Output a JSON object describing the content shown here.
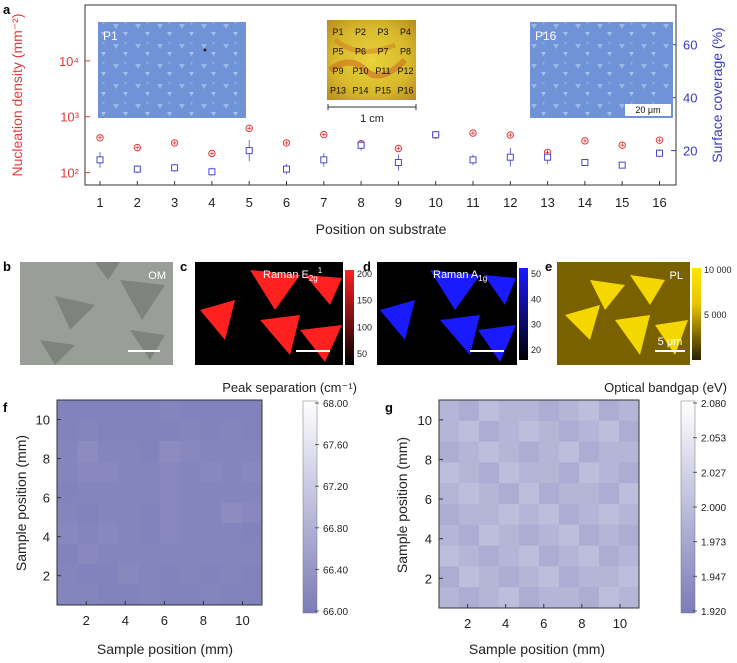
{
  "panel_a": {
    "letter": "a",
    "chart_data": {
      "type": "scatter",
      "xlabel": "Position on substrate",
      "ylabel_left": "Nucleation density (mm⁻²)",
      "ylabel_right": "Surface coverage (%)",
      "x_ticks": [
        "1",
        "2",
        "3",
        "4",
        "5",
        "6",
        "7",
        "8",
        "9",
        "10",
        "11",
        "12",
        "13",
        "14",
        "15",
        "16"
      ],
      "y_left_scale": "log",
      "y_left_ticks": [
        "10²",
        "10³",
        "10⁴"
      ],
      "y_left_range": [
        60,
        100000
      ],
      "y_right_ticks": [
        "20",
        "40",
        "60"
      ],
      "y_right_range": [
        7,
        75
      ],
      "series": [
        {
          "color": "#e03b3b",
          "marker": "circle-plus",
          "x": [
            1,
            2,
            3,
            4,
            5,
            6,
            7,
            8,
            9,
            10,
            11,
            12,
            13,
            14,
            15,
            16
          ],
          "values": [
            420,
            280,
            340,
            220,
            620,
            340,
            480,
            330,
            270,
            470,
            510,
            470,
            230,
            370,
            310,
            380
          ]
        },
        {
          "color": "#4a4ac8",
          "marker": "square-errorbar",
          "x": [
            1,
            2,
            3,
            4,
            5,
            6,
            7,
            8,
            9,
            10,
            11,
            12,
            13,
            14,
            15,
            16
          ],
          "values": [
            16.5,
            13,
            13.5,
            12,
            20,
            13,
            16.5,
            22,
            15.5,
            26,
            16.5,
            17.5,
            17.5,
            15.5,
            14.5,
            19
          ],
          "errors": [
            3,
            1.5,
            1.5,
            1.5,
            4,
            2,
            2.5,
            2,
            3,
            1.5,
            2,
            3.5,
            2.5,
            1,
            1,
            1.5
          ]
        }
      ]
    },
    "insets": {
      "left_label": "P1",
      "right_label": "P16",
      "scalebar_small": "20 μm",
      "grid_labels": [
        "P1",
        "P2",
        "P3",
        "P4",
        "P5",
        "P6",
        "P7",
        "P8",
        "P9",
        "P10",
        "P11",
        "P12",
        "P13",
        "P14",
        "P15",
        "P16"
      ],
      "scale_1cm": "1 cm"
    }
  },
  "panel_b": {
    "letter": "b",
    "label": "OM"
  },
  "panel_c": {
    "letter": "c",
    "label": "Raman E",
    "sub": "2g",
    "sup": "1",
    "colorbar_ticks": [
      "200",
      "150",
      "100",
      "50"
    ],
    "color": "#ff2020"
  },
  "panel_d": {
    "letter": "d",
    "label": "Raman A",
    "sub": "1g",
    "colorbar_ticks": [
      "50",
      "40",
      "30",
      "20"
    ],
    "color": "#1a1aff"
  },
  "panel_e": {
    "letter": "e",
    "label": "PL",
    "scalebar": "5 μm",
    "colorbar_ticks": [
      "10 000",
      "5 000"
    ],
    "color": "#e8c200"
  },
  "panel_f": {
    "letter": "f",
    "chart_data": {
      "type": "heatmap",
      "title": "Peak separation (cm⁻¹)",
      "xlabel": "Sample position (mm)",
      "ylabel": "Sample position (mm)",
      "x_ticks": [
        "2",
        "4",
        "6",
        "8",
        "10"
      ],
      "y_ticks": [
        "2",
        "4",
        "6",
        "8",
        "10"
      ],
      "colorbar_ticks": [
        "68.00",
        "67.60",
        "67.20",
        "66.80",
        "66.40",
        "66.00"
      ],
      "range": [
        66.0,
        68.0
      ],
      "values": [
        [
          66.1,
          66.1,
          66.1,
          66.1,
          66.1,
          66.15,
          66.1,
          66.1,
          66.1,
          66.1
        ],
        [
          66.1,
          66.15,
          66.1,
          66.1,
          66.1,
          66.1,
          66.15,
          66.1,
          66.15,
          66.1
        ],
        [
          66.15,
          66.25,
          66.15,
          66.15,
          66.1,
          66.25,
          66.2,
          66.15,
          66.15,
          66.15
        ],
        [
          66.15,
          66.2,
          66.2,
          66.15,
          66.15,
          66.2,
          66.15,
          66.2,
          66.15,
          66.2
        ],
        [
          66.1,
          66.15,
          66.15,
          66.15,
          66.15,
          66.2,
          66.15,
          66.15,
          66.15,
          66.15
        ],
        [
          66.15,
          66.1,
          66.15,
          66.15,
          66.1,
          66.2,
          66.15,
          66.15,
          66.25,
          66.2
        ],
        [
          66.2,
          66.15,
          66.2,
          66.15,
          66.1,
          66.2,
          66.15,
          66.15,
          66.15,
          66.1
        ],
        [
          66.1,
          66.2,
          66.15,
          66.15,
          66.15,
          66.15,
          66.15,
          66.15,
          66.15,
          66.15
        ],
        [
          66.15,
          66.1,
          66.1,
          66.2,
          66.15,
          66.1,
          66.15,
          66.1,
          66.15,
          66.1
        ],
        [
          66.15,
          66.15,
          66.1,
          66.1,
          66.15,
          66.1,
          66.1,
          66.15,
          66.1,
          66.1
        ]
      ]
    }
  },
  "panel_g": {
    "letter": "g",
    "chart_data": {
      "type": "heatmap",
      "title": "Optical bandgap (eV)",
      "xlabel": "Sample position (mm)",
      "ylabel": "Sample position (mm)",
      "x_ticks": [
        "2",
        "4",
        "6",
        "8",
        "10"
      ],
      "y_ticks": [
        "2",
        "4",
        "6",
        "8",
        "10"
      ],
      "colorbar_ticks": [
        "2.080",
        "2.053",
        "2.027",
        "2.000",
        "1.973",
        "1.947",
        "1.920"
      ],
      "range": [
        1.92,
        2.08
      ],
      "values": [
        [
          1.99,
          1.98,
          2.0,
          1.99,
          1.99,
          1.98,
          1.99,
          2.0,
          1.98,
          1.99
        ],
        [
          1.99,
          2.0,
          1.98,
          1.99,
          2.0,
          1.99,
          1.98,
          1.99,
          2.0,
          1.98
        ],
        [
          1.98,
          1.99,
          2.0,
          1.99,
          1.98,
          1.99,
          2.0,
          1.98,
          1.99,
          1.99
        ],
        [
          2.0,
          1.99,
          1.98,
          2.0,
          1.99,
          1.99,
          1.98,
          2.0,
          1.99,
          1.98
        ],
        [
          1.99,
          2.0,
          1.99,
          1.98,
          2.0,
          1.98,
          1.99,
          1.99,
          1.98,
          2.0
        ],
        [
          1.98,
          1.99,
          1.99,
          2.0,
          1.99,
          2.0,
          1.98,
          1.99,
          2.0,
          1.99
        ],
        [
          1.99,
          1.98,
          2.0,
          1.99,
          1.98,
          1.99,
          2.0,
          1.98,
          1.99,
          1.98
        ],
        [
          2.0,
          1.99,
          1.98,
          1.99,
          2.0,
          1.98,
          1.99,
          2.0,
          1.98,
          1.99
        ],
        [
          1.98,
          2.0,
          1.99,
          1.98,
          1.99,
          2.0,
          1.98,
          1.99,
          1.99,
          2.0
        ],
        [
          1.99,
          1.98,
          1.99,
          2.0,
          1.98,
          1.99,
          1.99,
          1.98,
          2.0,
          1.99
        ]
      ]
    }
  }
}
